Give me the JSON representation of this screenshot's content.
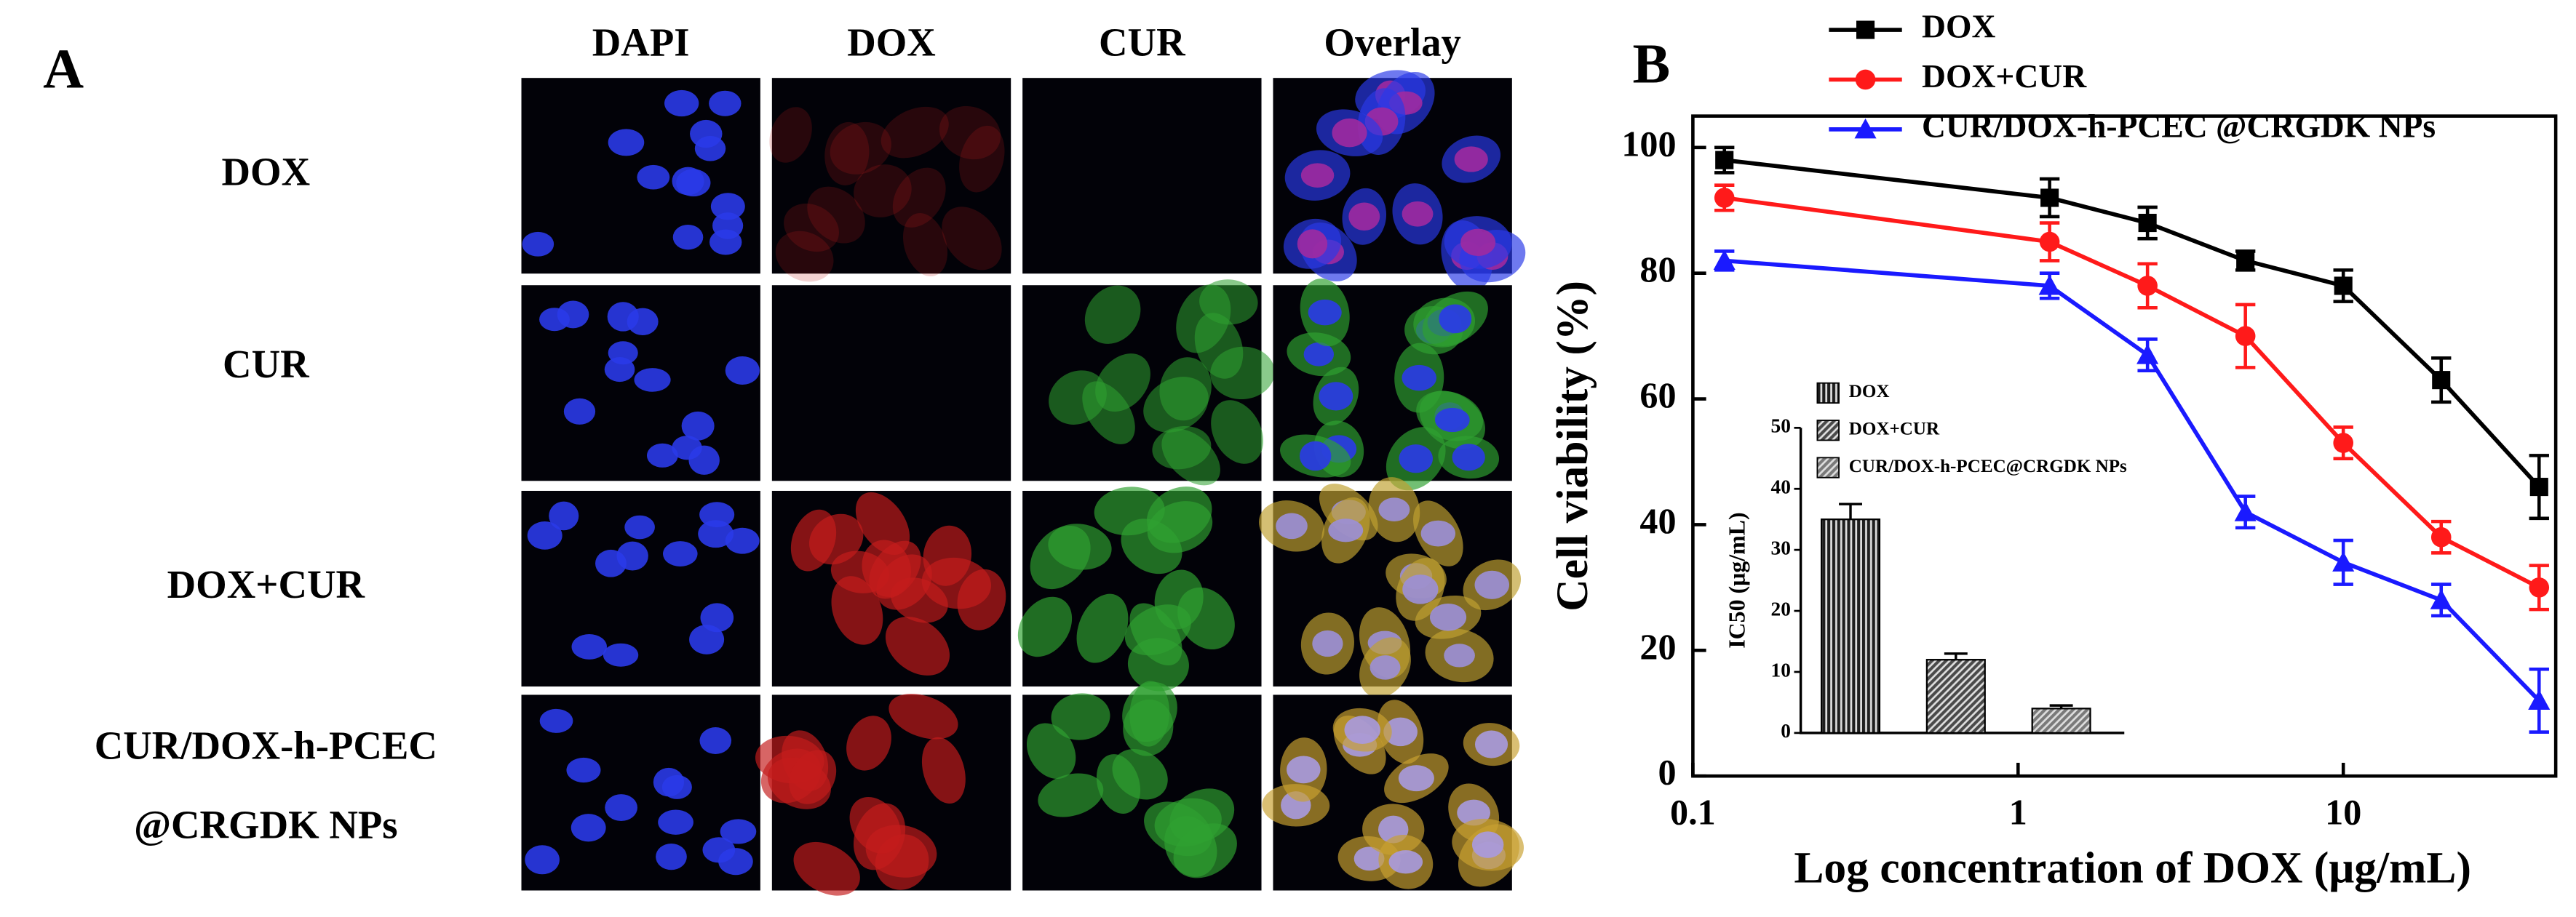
{
  "panel_a": {
    "label": "A",
    "columns": [
      "DAPI",
      "DOX",
      "CUR",
      "Overlay"
    ],
    "rows": [
      [
        "DOX"
      ],
      [
        "CUR"
      ],
      [
        "DOX+CUR"
      ],
      [
        "CUR/DOX-h-PCEC",
        "@CRGDK NPs"
      ]
    ]
  },
  "chart_data": [
    {
      "type": "line",
      "panel_label": "B",
      "xlabel": "Log concentration of DOX (μg/mL)",
      "ylabel": "Cell viability (%)",
      "x": [
        0.125,
        1.25,
        2.5,
        5,
        10,
        20,
        40
      ],
      "log_x": true,
      "xlim": [
        0.1,
        45
      ],
      "xticks": [
        0.1,
        1,
        10
      ],
      "ylim": [
        0,
        105
      ],
      "yticks": [
        0,
        20,
        40,
        60,
        80,
        100
      ],
      "legend": "top",
      "series": [
        {
          "name": "DOX",
          "color": "#000000",
          "marker": "square",
          "values": [
            98,
            92,
            88,
            82,
            78,
            63,
            46
          ],
          "errors": [
            2,
            3,
            2.5,
            1.5,
            2.5,
            3.5,
            5
          ]
        },
        {
          "name": "DOX+CUR",
          "color": "#ff1a1a",
          "marker": "circle",
          "values": [
            92,
            85,
            78,
            70,
            53,
            38,
            30
          ],
          "errors": [
            2,
            3,
            3.5,
            5,
            2.5,
            2.5,
            3.5
          ]
        },
        {
          "name": "CUR/DOX-h-PCEC @CRGDK NPs",
          "color": "#1a1aff",
          "marker": "triangle",
          "values": [
            82,
            78,
            67,
            42,
            34,
            28,
            12
          ],
          "errors": [
            1.5,
            2,
            2.5,
            2.5,
            3.5,
            2.5,
            5
          ]
        }
      ]
    },
    {
      "type": "bar",
      "ylabel": "IC50 (μg/mL)",
      "categories": [
        "DOX",
        "DOX+CUR",
        "CUR/DOX-h-PCEC@CRGDK NPs"
      ],
      "values": [
        35,
        12,
        4
      ],
      "errors": [
        2.5,
        1,
        0.5
      ],
      "colors": [
        "#1e1e1e",
        "#4a4a4a",
        "#7a7a7a"
      ],
      "ylim": [
        0,
        50
      ],
      "yticks": [
        0,
        10,
        20,
        30,
        40,
        50
      ]
    }
  ]
}
